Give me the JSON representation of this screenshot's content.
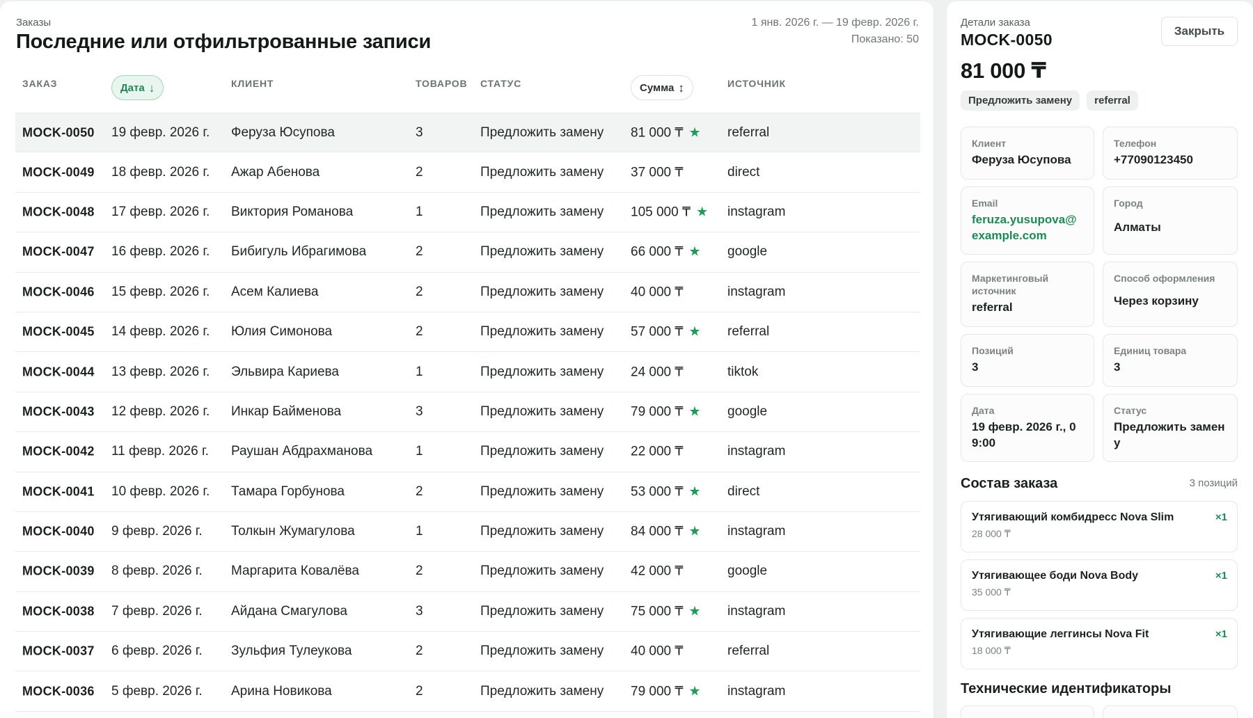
{
  "orders": {
    "eyebrow": "Заказы",
    "title": "Последние или отфильтрованные записи",
    "date_range": "1 янв. 2026 г. — 19 февр. 2026 г.",
    "shown": "Показано: 50",
    "columns": {
      "order": "Заказ",
      "date": "Дата",
      "client": "Клиент",
      "items": "Товаров",
      "status": "Статус",
      "sum": "Сумма",
      "source": "Источник"
    },
    "rows": [
      {
        "id": "MOCK-0050",
        "date": "19 февр. 2026 г.",
        "client": "Феруза Юсупова",
        "items": "3",
        "status": "Предложить замену",
        "sum": "81 000 ₸",
        "star": true,
        "source": "referral"
      },
      {
        "id": "MOCK-0049",
        "date": "18 февр. 2026 г.",
        "client": "Ажар Абенова",
        "items": "2",
        "status": "Предложить замену",
        "sum": "37 000 ₸",
        "star": false,
        "source": "direct"
      },
      {
        "id": "MOCK-0048",
        "date": "17 февр. 2026 г.",
        "client": "Виктория Романова",
        "items": "1",
        "status": "Предложить замену",
        "sum": "105 000 ₸",
        "star": true,
        "source": "instagram"
      },
      {
        "id": "MOCK-0047",
        "date": "16 февр. 2026 г.",
        "client": "Бибигуль Ибрагимова",
        "items": "2",
        "status": "Предложить замену",
        "sum": "66 000 ₸",
        "star": true,
        "source": "google"
      },
      {
        "id": "MOCK-0046",
        "date": "15 февр. 2026 г.",
        "client": "Асем Калиева",
        "items": "2",
        "status": "Предложить замену",
        "sum": "40 000 ₸",
        "star": false,
        "source": "instagram"
      },
      {
        "id": "MOCK-0045",
        "date": "14 февр. 2026 г.",
        "client": "Юлия Симонова",
        "items": "2",
        "status": "Предложить замену",
        "sum": "57 000 ₸",
        "star": true,
        "source": "referral"
      },
      {
        "id": "MOCK-0044",
        "date": "13 февр. 2026 г.",
        "client": "Эльвира Кариева",
        "items": "1",
        "status": "Предложить замену",
        "sum": "24 000 ₸",
        "star": false,
        "source": "tiktok"
      },
      {
        "id": "MOCK-0043",
        "date": "12 февр. 2026 г.",
        "client": "Инкар Байменова",
        "items": "3",
        "status": "Предложить замену",
        "sum": "79 000 ₸",
        "star": true,
        "source": "google"
      },
      {
        "id": "MOCK-0042",
        "date": "11 февр. 2026 г.",
        "client": "Раушан Абдрахманова",
        "items": "1",
        "status": "Предложить замену",
        "sum": "22 000 ₸",
        "star": false,
        "source": "instagram"
      },
      {
        "id": "MOCK-0041",
        "date": "10 февр. 2026 г.",
        "client": "Тамара Горбунова",
        "items": "2",
        "status": "Предложить замену",
        "sum": "53 000 ₸",
        "star": true,
        "source": "direct"
      },
      {
        "id": "MOCK-0040",
        "date": "9 февр. 2026 г.",
        "client": "Толкын Жумагулова",
        "items": "1",
        "status": "Предложить замену",
        "sum": "84 000 ₸",
        "star": true,
        "source": "instagram"
      },
      {
        "id": "MOCK-0039",
        "date": "8 февр. 2026 г.",
        "client": "Маргарита Ковалёва",
        "items": "2",
        "status": "Предложить замену",
        "sum": "42 000 ₸",
        "star": false,
        "source": "google"
      },
      {
        "id": "MOCK-0038",
        "date": "7 февр. 2026 г.",
        "client": "Айдана Смагулова",
        "items": "3",
        "status": "Предложить замену",
        "sum": "75 000 ₸",
        "star": true,
        "source": "instagram"
      },
      {
        "id": "MOCK-0037",
        "date": "6 февр. 2026 г.",
        "client": "Зульфия Тулеукова",
        "items": "2",
        "status": "Предложить замену",
        "sum": "40 000 ₸",
        "star": false,
        "source": "referral"
      },
      {
        "id": "MOCK-0036",
        "date": "5 февр. 2026 г.",
        "client": "Арина Новикова",
        "items": "2",
        "status": "Предложить замену",
        "sum": "79 000 ₸",
        "star": true,
        "source": "instagram"
      }
    ]
  },
  "details": {
    "eyebrow": "Детали заказа",
    "order_id": "MOCK-0050",
    "close_label": "Закрыть",
    "amount": "81 000 ₸",
    "tags": [
      "Предложить замену",
      "referral"
    ],
    "fields": {
      "client_label": "Клиент",
      "client": "Феруза Юсупова",
      "phone_label": "Телефон",
      "phone": "+77090123450",
      "email_label": "Email",
      "email": "feruza.yusupova@example.com",
      "city_label": "Город",
      "city": "Алматы",
      "marketing_label": "Маркетинговый источник",
      "marketing": "referral",
      "checkout_label": "Способ оформления",
      "checkout": "Через корзину",
      "positions_label": "Позиций",
      "positions": "3",
      "units_label": "Единиц товара",
      "units": "3",
      "date_label": "Дата",
      "date": "19 февр. 2026 г., 09:00",
      "status_label": "Статус",
      "status": "Предложить замену"
    },
    "composition_title": "Состав заказа",
    "composition_meta": "3 позиций",
    "items": [
      {
        "name": "Утягивающий комбидресс Nova Slim",
        "price": "28 000 ₸",
        "qty": "×1"
      },
      {
        "name": "Утягивающее боди Nova Body",
        "price": "35 000 ₸",
        "qty": "×1"
      },
      {
        "name": "Утягивающие леггинсы Nova Fit",
        "price": "18 000 ₸",
        "qty": "×1"
      }
    ],
    "tech_title": "Технические идентификаторы"
  },
  "colors": {
    "accent": "#1e8a53",
    "star": "#1e9a5a",
    "selected_row": "#f1f4f2"
  },
  "icons": {
    "sort_desc": "arrow-down-icon",
    "sort_both": "sort-vertical-icon",
    "star": "star-icon"
  }
}
